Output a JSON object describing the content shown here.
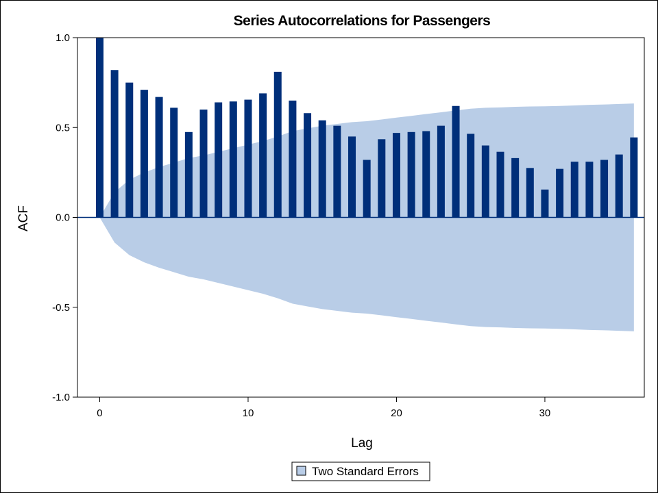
{
  "chart_data": {
    "type": "bar",
    "title": "Series Autocorrelations for Passengers",
    "xlabel": "Lag",
    "ylabel": "ACF",
    "xlim": [
      -1.5,
      36.7
    ],
    "ylim": [
      -1.0,
      1.0
    ],
    "xticks": [
      0,
      10,
      20,
      30
    ],
    "xtick_labels": [
      "0",
      "10",
      "20",
      "30"
    ],
    "yticks": [
      -1.0,
      -0.5,
      0.0,
      0.5,
      1.0
    ],
    "ytick_labels": [
      "-1.0",
      "-0.5",
      "0.0",
      "0.5",
      "1.0"
    ],
    "grid": false,
    "legend_position": "bottom",
    "lags": [
      0,
      1,
      2,
      3,
      4,
      5,
      6,
      7,
      8,
      9,
      10,
      11,
      12,
      13,
      14,
      15,
      16,
      17,
      18,
      19,
      20,
      21,
      22,
      23,
      24,
      25,
      26,
      27,
      28,
      29,
      30,
      31,
      32,
      33,
      34,
      35,
      36
    ],
    "series": [
      {
        "values": [
          1.0,
          0.82,
          0.75,
          0.71,
          0.67,
          0.61,
          0.475,
          0.6,
          0.64,
          0.645,
          0.655,
          0.69,
          0.81,
          0.65,
          0.58,
          0.54,
          0.51,
          0.45,
          0.32,
          0.435,
          0.47,
          0.475,
          0.48,
          0.51,
          0.62,
          0.465,
          0.4,
          0.365,
          0.33,
          0.275,
          0.155,
          0.27,
          0.31,
          0.31,
          0.32,
          0.35,
          0.445
        ],
        "color": "#002f7a"
      },
      {
        "name": "Two Standard Errors",
        "type": "area",
        "upper": [
          0.0,
          0.14,
          0.21,
          0.25,
          0.28,
          0.305,
          0.33,
          0.345,
          0.365,
          0.385,
          0.405,
          0.425,
          0.45,
          0.48,
          0.495,
          0.51,
          0.52,
          0.53,
          0.535,
          0.545,
          0.555,
          0.565,
          0.575,
          0.585,
          0.595,
          0.605,
          0.61,
          0.612,
          0.615,
          0.617,
          0.618,
          0.62,
          0.623,
          0.626,
          0.628,
          0.631,
          0.634
        ],
        "color": "#b9cde7"
      }
    ],
    "legend": [
      "Two Standard Errors"
    ]
  },
  "colors": {
    "bar": "#002f7a",
    "band": "#b9cde7",
    "zero_line": "#002f7a"
  }
}
